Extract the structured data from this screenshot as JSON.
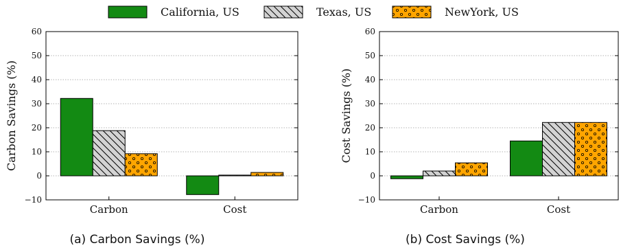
{
  "legend": [
    {
      "label": "California, US",
      "fill": "#138a13",
      "pattern": "solid"
    },
    {
      "label": "Texas, US",
      "fill": "#d3d3d3",
      "pattern": "diagonal-hatch"
    },
    {
      "label": "NewYork, US",
      "fill": "#ffa500",
      "pattern": "dots"
    }
  ],
  "chart_data": [
    {
      "type": "bar",
      "caption": "(a) Carbon Savings (%)",
      "ylabel": "Carbon Savings (%)",
      "categories": [
        "Carbon",
        "Cost"
      ],
      "ylim": [
        -10,
        60
      ],
      "yticks": [
        -10,
        0,
        10,
        20,
        30,
        40,
        50,
        60
      ],
      "grid": true,
      "series": [
        {
          "name": "California, US",
          "values": [
            32.2,
            -7.8
          ]
        },
        {
          "name": "Texas, US",
          "values": [
            18.8,
            0.3
          ]
        },
        {
          "name": "NewYork, US",
          "values": [
            9.2,
            1.4
          ]
        }
      ]
    },
    {
      "type": "bar",
      "caption": "(b) Cost Savings (%)",
      "ylabel": "Cost Savings (%)",
      "categories": [
        "Carbon",
        "Cost"
      ],
      "ylim": [
        -10,
        60
      ],
      "yticks": [
        -10,
        0,
        10,
        20,
        30,
        40,
        50,
        60
      ],
      "grid": true,
      "series": [
        {
          "name": "California, US",
          "values": [
            -1.2,
            14.5
          ]
        },
        {
          "name": "Texas, US",
          "values": [
            2.0,
            22.2
          ]
        },
        {
          "name": "NewYork, US",
          "values": [
            5.4,
            22.2
          ]
        }
      ]
    }
  ]
}
